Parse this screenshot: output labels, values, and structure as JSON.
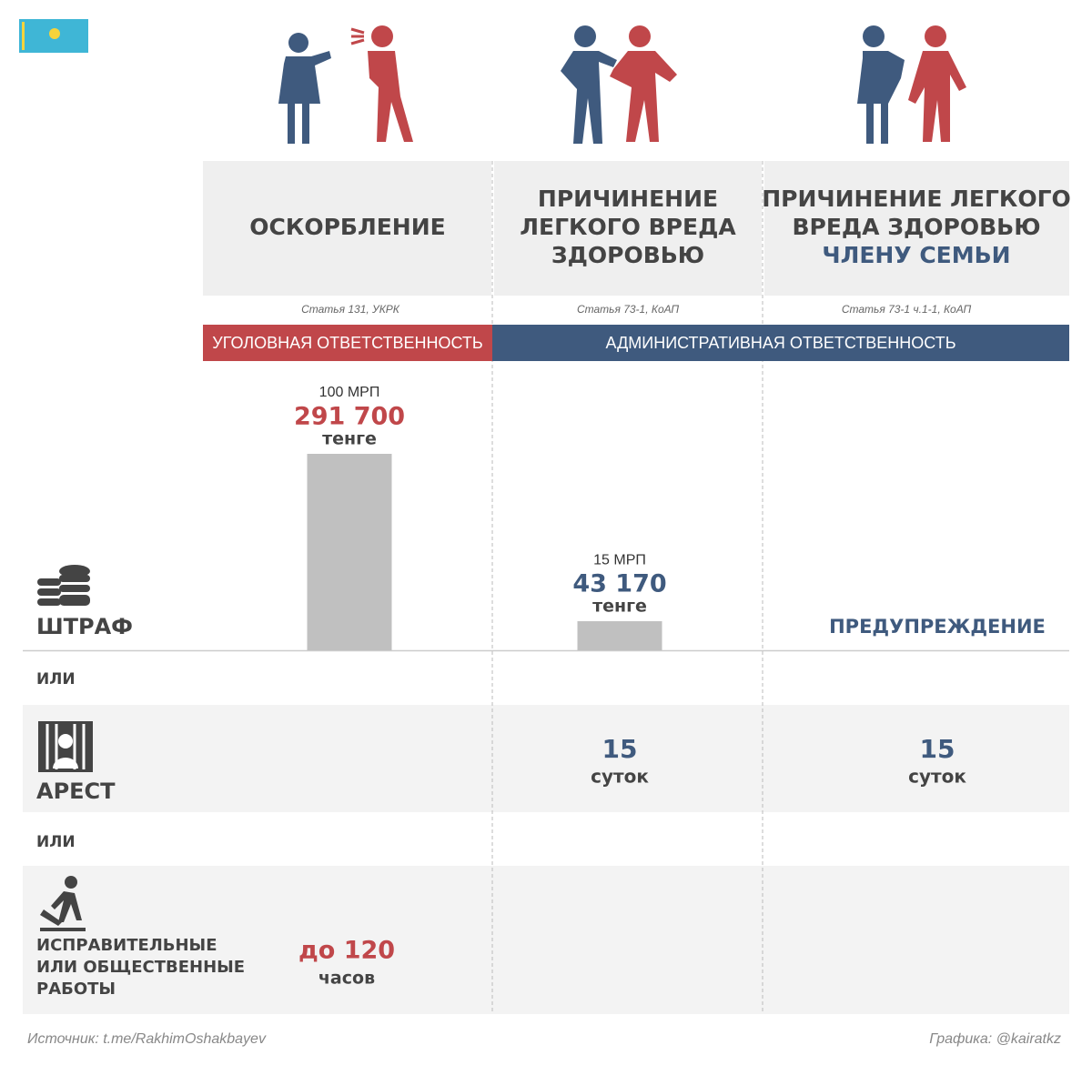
{
  "columns": [
    {
      "title": [
        "ОСКОРБЛЕНИЕ"
      ],
      "article": "Статья 131, УКРК",
      "fine": {
        "mrp": "100 МРП",
        "amount": {
          "value": 291700,
          "label": "291 700"
        },
        "unit": "тенге"
      },
      "works": {
        "amount": "до 120",
        "unit": "часов"
      }
    },
    {
      "title": [
        "ПРИЧИНЕНИЕ",
        "ЛЕГКОГО ВРЕДА",
        "ЗДОРОВЬЮ"
      ],
      "article": "Статья 73-1, КоАП",
      "fine": {
        "mrp": "15 МРП",
        "amount": {
          "value": 43170,
          "label": "43 170"
        },
        "unit": "тенге"
      },
      "arrest": {
        "amount": 15,
        "unit": "суток"
      }
    },
    {
      "title": [
        "ПРИЧИНЕНИЕ ЛЕГКОГО",
        "ВРЕДА ЗДОРОВЬЮ"
      ],
      "title_highlight": "ЧЛЕНУ СЕМЬИ",
      "article": "Статья 73-1 ч.1-1, КоАП",
      "fine": {
        "text": "ПРЕДУПРЕЖДЕНИЕ"
      },
      "arrest": {
        "amount": 15,
        "unit": "суток"
      }
    }
  ],
  "responsibility": [
    "УГОЛОВНАЯ ОТВЕТСТВЕННОСТЬ",
    "АДМИНИСТРАТИВНАЯ ОТВЕТСТВЕННОСТЬ"
  ],
  "rows": {
    "fine": "ШТРАФ",
    "or1": "ИЛИ",
    "arrest": "АРЕСТ",
    "or2": "ИЛИ",
    "works": [
      "ИСПРАВИТЕЛЬНЫЕ",
      "ИЛИ ОБЩЕСТВЕННЫЕ",
      "РАБОТЫ"
    ]
  },
  "footer": {
    "source": "Источник: t.me/RakhimOshakbayev",
    "credit": "Графика: @kairatkz"
  }
}
